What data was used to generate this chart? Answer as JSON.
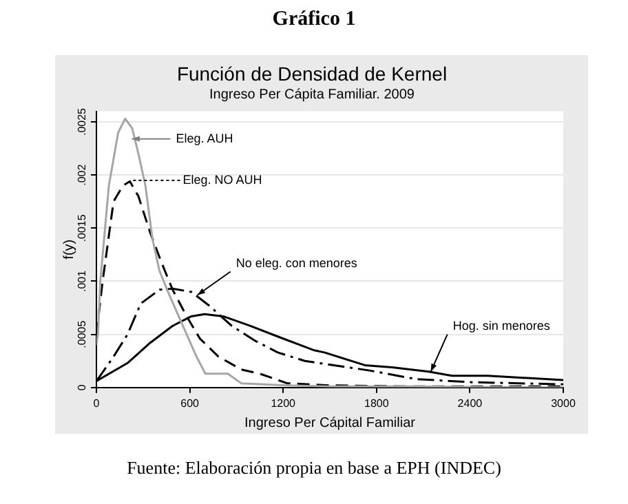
{
  "chart_data": {
    "type": "line",
    "title": "Función de Densidad de Kernel",
    "subtitle": "Ingreso Per Cápita Familiar. 2009",
    "xlabel": "Ingreso Per Cápital Familiar",
    "ylabel": "f(y)",
    "xlim": [
      0,
      3000
    ],
    "xticks": [
      0,
      600,
      1200,
      1800,
      2400,
      3000
    ],
    "ylim": [
      0,
      0.0026
    ],
    "yticks": [
      {
        "value": 0,
        "label": "0"
      },
      {
        "value": 0.0005,
        "label": ".0005"
      },
      {
        "value": 0.001,
        "label": ".001"
      },
      {
        "value": 0.0015,
        "label": ".0015"
      },
      {
        "value": 0.002,
        "label": ".002"
      },
      {
        "value": 0.0025,
        "label": ".0025"
      }
    ],
    "grid": "y",
    "legend": false,
    "marker": "none",
    "series": [
      {
        "color": "#a6a6a6",
        "line_style": "solid",
        "x": [
          0,
          10,
          25,
          80,
          140,
          185,
          230,
          270,
          315,
          360,
          405,
          460,
          520,
          580,
          640,
          700,
          755,
          845,
          930,
          1225,
          1500,
          2000,
          3000
        ],
        "values": [
          0.0004,
          0.0005,
          0.001,
          0.0019,
          0.0024,
          0.00253,
          0.00244,
          0.0022,
          0.0019,
          0.0014,
          0.0011,
          0.0009,
          0.0007,
          0.0005,
          0.0003,
          0.00013,
          0.00013,
          0.00013,
          4e-05,
          2e-05,
          1e-05,
          1e-05,
          0
        ]
      },
      {
        "color": "#000000",
        "line_style": "dashed",
        "x": [
          0,
          40,
          110,
          170,
          215,
          270,
          345,
          420,
          490,
          580,
          665,
          785,
          930,
          1050,
          1225,
          1500,
          2000,
          3000
        ],
        "values": [
          0.0005,
          0.001,
          0.00175,
          0.0019,
          0.00194,
          0.0018,
          0.00146,
          0.00117,
          0.00092,
          0.00067,
          0.00046,
          0.00029,
          0.00017,
          0.00013,
          4e-05,
          2e-05,
          1e-05,
          1e-05
        ]
      },
      {
        "color": "#000000",
        "line_style": "dashdot",
        "x": [
          0,
          110,
          200,
          285,
          405,
          490,
          610,
          725,
          870,
          1020,
          1165,
          1340,
          1755,
          2050,
          2400,
          3000
        ],
        "values": [
          6e-05,
          0.00029,
          0.0005,
          0.00079,
          0.00092,
          0.00093,
          0.0009,
          0.00077,
          0.00058,
          0.00044,
          0.00033,
          0.00025,
          0.00016,
          8e-05,
          5e-05,
          3e-05
        ]
      },
      {
        "color": "#000000",
        "line_style": "solid",
        "x": [
          0,
          200,
          345,
          490,
          610,
          695,
          815,
          990,
          1165,
          1400,
          1465,
          1725,
          1900,
          2135,
          2285,
          2515,
          3000
        ],
        "values": [
          6e-05,
          0.00023,
          0.00042,
          0.00058,
          0.00067,
          0.00069,
          0.00067,
          0.00058,
          0.00048,
          0.00035,
          0.00033,
          0.00021,
          0.00019,
          0.00015,
          0.00011,
          0.00011,
          7e-05
        ]
      }
    ],
    "annotations": [
      "Gráfico 1",
      {
        "text": "Eleg. AUH",
        "x": 228,
        "y": 0.00234
      },
      "Eleg. NO AUH",
      {
        "text": "No eleg. con menores",
        "x": 649,
        "y": 0.00087
      },
      {
        "text": "Hog. sin menores",
        "x": 2149,
        "y": 0.00015
      },
      "Fuente: Elaboración propia en base a EPH (INDEC)"
    ]
  }
}
